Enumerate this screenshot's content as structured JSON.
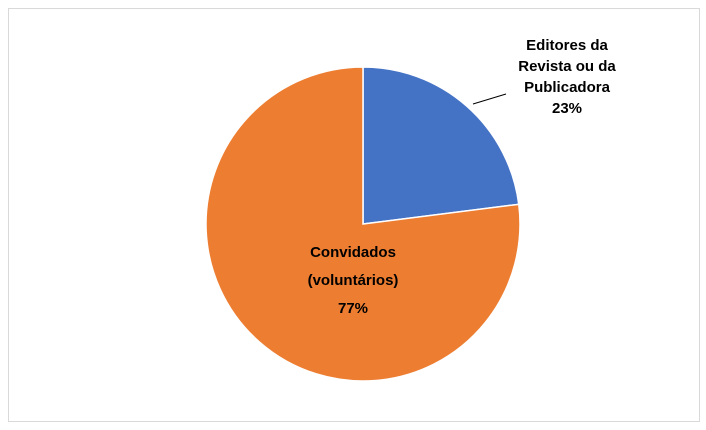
{
  "chart_data": {
    "type": "pie",
    "title": "",
    "slices": [
      {
        "label_lines": [
          "Editores da",
          "Revista ou da",
          "Publicadora"
        ],
        "value_label": "23%",
        "value": 23,
        "color": "#4472C4"
      },
      {
        "label_lines": [
          "Convidados",
          "(voluntários)"
        ],
        "value_label": "77%",
        "value": 77,
        "color": "#ED7D31"
      }
    ],
    "legend": "none"
  }
}
